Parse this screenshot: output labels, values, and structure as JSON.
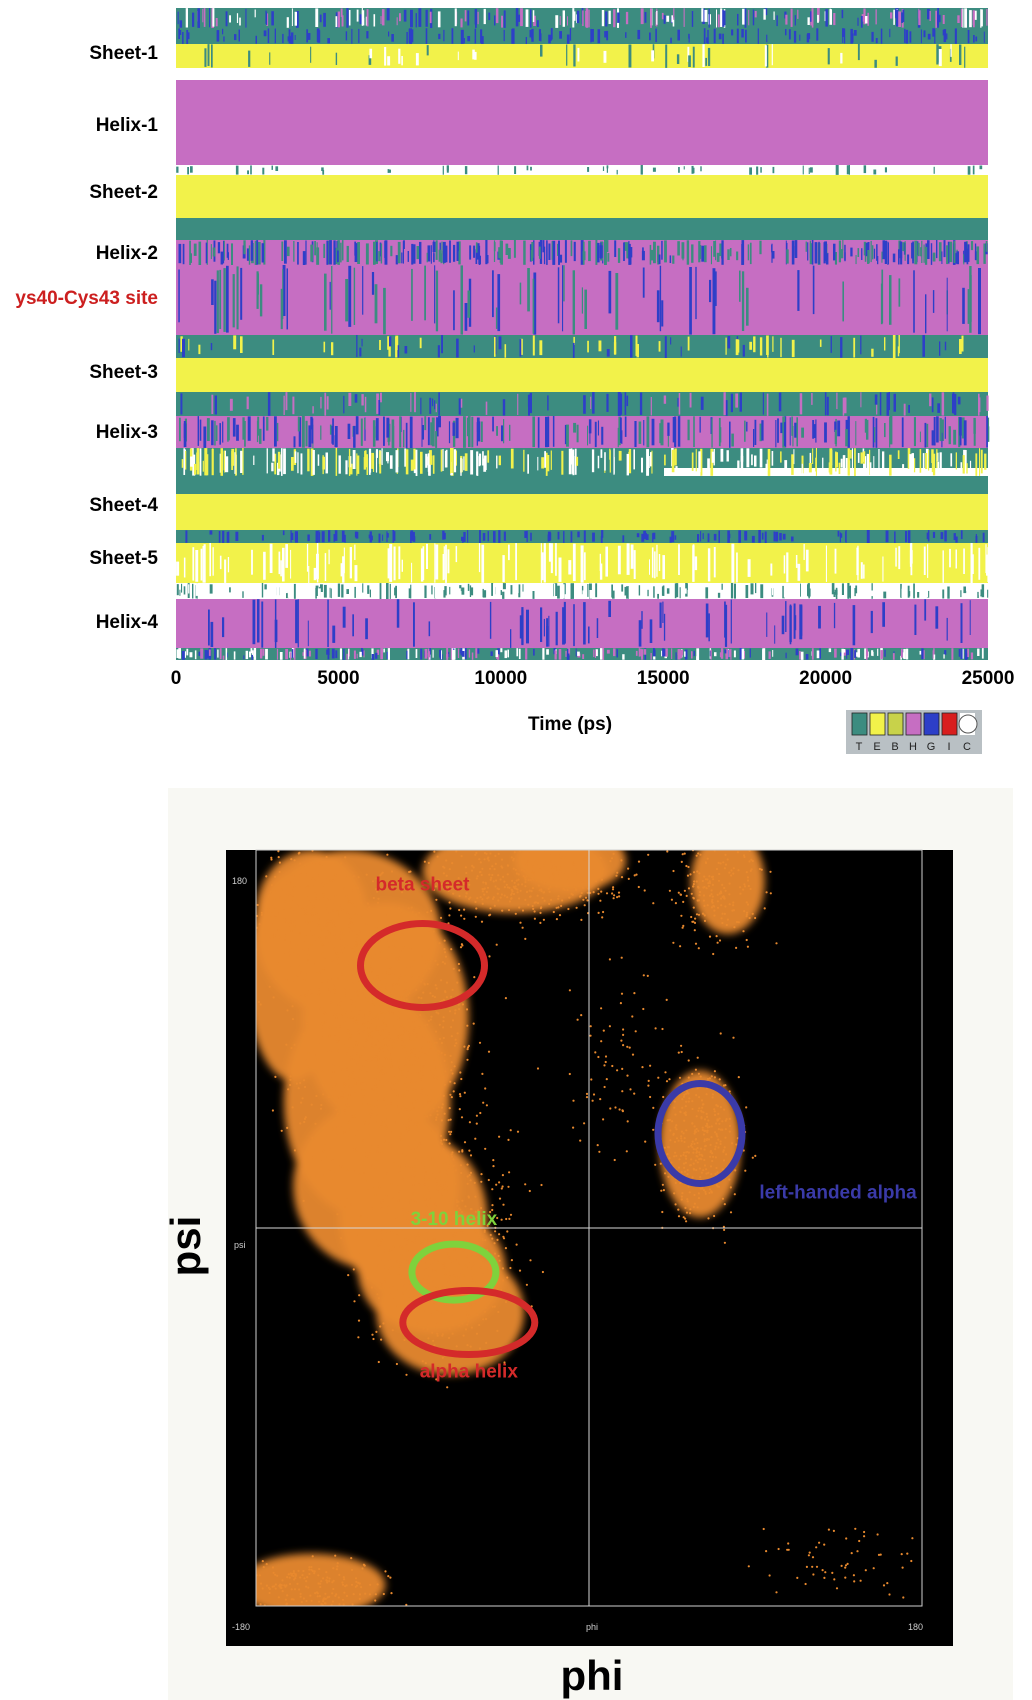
{
  "chart_data": [
    {
      "type": "heatmap",
      "xlabel": "Time (ps)",
      "x_ticks": [
        "0",
        "5000",
        "10000",
        "15000",
        "20000",
        "25000"
      ],
      "xlim": [
        0,
        25000
      ],
      "row_labels": [
        {
          "label": "Sheet-1",
          "color": "#000000"
        },
        {
          "label": "Helix-1",
          "color": "#000000"
        },
        {
          "label": "Sheet-2",
          "color": "#000000"
        },
        {
          "label": "Helix-2",
          "color": "#000000"
        },
        {
          "label": "ys40-Cys43 site",
          "color": "#cc1f1f"
        },
        {
          "label": "Sheet-3",
          "color": "#000000"
        },
        {
          "label": "Helix-3",
          "color": "#000000"
        },
        {
          "label": "Sheet-4",
          "color": "#000000"
        },
        {
          "label": "Sheet-5",
          "color": "#000000"
        },
        {
          "label": "Helix-4",
          "color": "#000000"
        }
      ],
      "legend": {
        "codes": [
          "T",
          "E",
          "B",
          "H",
          "G",
          "I",
          "C"
        ],
        "colors": [
          "#3c8c80",
          "#f2f24a",
          "#c8d24a",
          "#c66ec2",
          "#2d3fc8",
          "#d81e1e",
          "#ffffff"
        ]
      },
      "state_colors": {
        "turn": "#3c8c80",
        "sheet": "#f2f24a",
        "helix": "#c66ec2",
        "g_helix": "#2d3fc8",
        "coil": "#ffffff"
      }
    },
    {
      "type": "scatter",
      "xlabel": "phi",
      "ylabel": "psi",
      "xlim": [
        -180,
        180
      ],
      "ylim": [
        -180,
        180
      ],
      "inner_tick_labels": {
        "top_left": "180",
        "bottom_left": "-180",
        "bottom_right": "180",
        "x_mid": "phi",
        "y_mid": "psi"
      },
      "point_color": "#e8892e",
      "background_color": "#000000",
      "annotations": [
        {
          "label": "beta sheet",
          "color": "#d42a2a",
          "phi": -90,
          "psi": 125
        },
        {
          "label": "3-10 helix",
          "color": "#7fd23c",
          "phi": -73,
          "psi": -21
        },
        {
          "label": "alpha helix",
          "color": "#d42a2a",
          "phi": -65,
          "psi": -45
        },
        {
          "label": "left-handed alpha",
          "color": "#3a3aa8",
          "phi": 60,
          "psi": 45
        }
      ]
    }
  ]
}
